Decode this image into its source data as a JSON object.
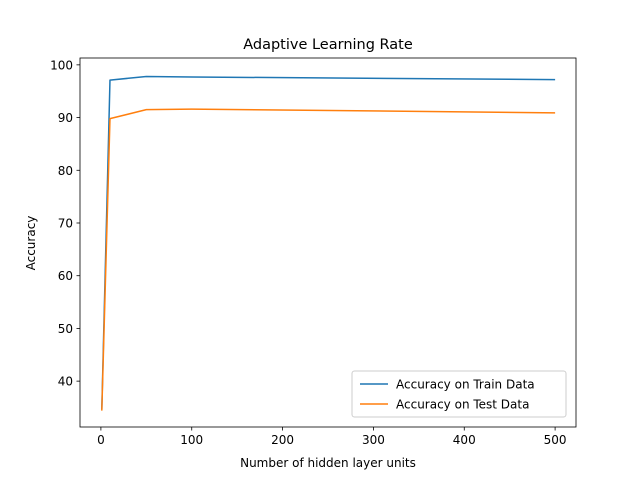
{
  "chart_data": {
    "type": "line",
    "title": "Adaptive Learning Rate",
    "xlabel": "Number of hidden layer units",
    "ylabel": "Accuracy",
    "xlim": [
      -23,
      523
    ],
    "ylim": [
      31.3,
      101.3
    ],
    "xticks": [
      0,
      100,
      200,
      300,
      400,
      500
    ],
    "yticks": [
      40,
      50,
      60,
      70,
      80,
      90,
      100
    ],
    "grid": false,
    "legend_position": "bottom-right",
    "series": [
      {
        "name": "Accuracy on Train Data",
        "color": "#1f77b4",
        "x": [
          1,
          10,
          50,
          100,
          500
        ],
        "y": [
          34.6,
          97.1,
          97.8,
          97.7,
          97.2
        ]
      },
      {
        "name": "Accuracy on Test Data",
        "color": "#ff7f0e",
        "x": [
          1,
          10,
          50,
          100,
          500
        ],
        "y": [
          34.4,
          89.8,
          91.5,
          91.6,
          90.9
        ]
      }
    ]
  }
}
